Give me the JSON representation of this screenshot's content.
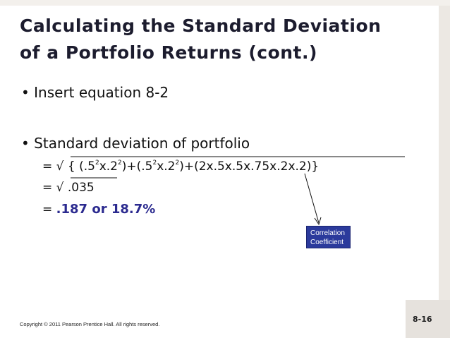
{
  "slide": {
    "title": [
      "Calculating the Standard Deviation",
      "of a Portfolio Returns (cont.)"
    ],
    "bullets": [
      "Insert equation 8-2",
      "Standard deviation of portfolio"
    ],
    "equation": [
      {
        "parts": [
          {
            "text": "= √ { (.5",
            "sup": false
          },
          {
            "text": "2",
            "sup": true
          },
          {
            "text": "x.2",
            "sup": false
          },
          {
            "text": "2",
            "sup": true
          },
          {
            "text": ")+(.5",
            "sup": false
          },
          {
            "text": "2",
            "sup": true
          },
          {
            "text": "x.2",
            "sup": false
          },
          {
            "text": "2",
            "sup": true
          },
          {
            "text": ")+(2x.5x.5x.75x.2x.2)}",
            "sup": false
          }
        ]
      },
      {
        "parts": [
          {
            "text": "= √ .035",
            "sup": false
          }
        ]
      },
      {
        "parts": [
          {
            "text": "= ",
            "sup": false
          },
          {
            "text": ".187 or 18.7%",
            "sup": false,
            "highlight": true
          }
        ]
      }
    ],
    "callout": [
      "Correlation",
      "Coefficient"
    ],
    "footer": "Copyright © 2011 Pearson Prentice Hall. All rights reserved.",
    "page_number": "8-16"
  }
}
